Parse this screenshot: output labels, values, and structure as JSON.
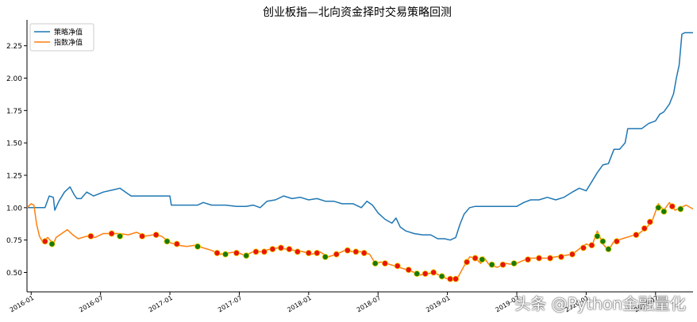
{
  "chart_data": {
    "type": "line",
    "title": "创业板指—北向资金择时交易策略回测",
    "xlabel": "",
    "ylabel": "",
    "ylim": [
      0.35,
      2.45
    ],
    "yticks": [
      "0.50",
      "0.75",
      "1.00",
      "1.25",
      "1.50",
      "1.75",
      "2.00",
      "2.25"
    ],
    "xticks": [
      {
        "t": 2016.0,
        "label": "2016-01"
      },
      {
        "t": 2016.5,
        "label": "2016-07"
      },
      {
        "t": 2017.0,
        "label": "2017-01"
      },
      {
        "t": 2017.5,
        "label": "2017-07"
      },
      {
        "t": 2018.0,
        "label": "2018-01"
      },
      {
        "t": 2018.5,
        "label": "2018-07"
      },
      {
        "t": 2019.0,
        "label": "2019-01"
      },
      {
        "t": 2019.5,
        "label": "2019-07"
      },
      {
        "t": 2020.0,
        "label": "2020-01"
      },
      {
        "t": 2020.5,
        "label": "2020-07"
      }
    ],
    "xlim": [
      2015.97,
      2020.77
    ],
    "legend_position": "top-left",
    "grid": false,
    "series": [
      {
        "name": "策略净值",
        "color": "#1f77b4",
        "points": [
          [
            2015.97,
            1.0
          ],
          [
            2016.05,
            1.0
          ],
          [
            2016.1,
            1.0
          ],
          [
            2016.13,
            1.09
          ],
          [
            2016.16,
            1.08
          ],
          [
            2016.17,
            0.98
          ],
          [
            2016.2,
            1.05
          ],
          [
            2016.24,
            1.12
          ],
          [
            2016.28,
            1.16
          ],
          [
            2016.31,
            1.1
          ],
          [
            2016.33,
            1.07
          ],
          [
            2016.36,
            1.07
          ],
          [
            2016.4,
            1.12
          ],
          [
            2016.45,
            1.09
          ],
          [
            2016.52,
            1.12
          ],
          [
            2016.6,
            1.14
          ],
          [
            2016.64,
            1.15
          ],
          [
            2016.68,
            1.12
          ],
          [
            2016.72,
            1.09
          ],
          [
            2016.8,
            1.09
          ],
          [
            2017.0,
            1.09
          ],
          [
            2017.01,
            1.02
          ],
          [
            2017.2,
            1.02
          ],
          [
            2017.24,
            1.04
          ],
          [
            2017.3,
            1.02
          ],
          [
            2017.4,
            1.02
          ],
          [
            2017.48,
            1.01
          ],
          [
            2017.55,
            1.01
          ],
          [
            2017.6,
            1.02
          ],
          [
            2017.65,
            1.0
          ],
          [
            2017.7,
            1.05
          ],
          [
            2017.76,
            1.06
          ],
          [
            2017.82,
            1.09
          ],
          [
            2017.88,
            1.07
          ],
          [
            2017.94,
            1.08
          ],
          [
            2018.0,
            1.06
          ],
          [
            2018.06,
            1.07
          ],
          [
            2018.12,
            1.05
          ],
          [
            2018.18,
            1.05
          ],
          [
            2018.24,
            1.03
          ],
          [
            2018.32,
            1.03
          ],
          [
            2018.38,
            1.0
          ],
          [
            2018.42,
            1.05
          ],
          [
            2018.46,
            1.02
          ],
          [
            2018.5,
            0.96
          ],
          [
            2018.55,
            0.91
          ],
          [
            2018.6,
            0.88
          ],
          [
            2018.63,
            0.92
          ],
          [
            2018.66,
            0.85
          ],
          [
            2018.7,
            0.82
          ],
          [
            2018.76,
            0.8
          ],
          [
            2018.82,
            0.79
          ],
          [
            2018.88,
            0.79
          ],
          [
            2018.93,
            0.76
          ],
          [
            2018.98,
            0.76
          ],
          [
            2019.02,
            0.75
          ],
          [
            2019.06,
            0.77
          ],
          [
            2019.09,
            0.87
          ],
          [
            2019.12,
            0.95
          ],
          [
            2019.16,
            1.0
          ],
          [
            2019.2,
            1.01
          ],
          [
            2019.35,
            1.01
          ],
          [
            2019.5,
            1.01
          ],
          [
            2019.55,
            1.04
          ],
          [
            2019.6,
            1.06
          ],
          [
            2019.66,
            1.06
          ],
          [
            2019.72,
            1.08
          ],
          [
            2019.78,
            1.06
          ],
          [
            2019.84,
            1.08
          ],
          [
            2019.9,
            1.12
          ],
          [
            2019.95,
            1.15
          ],
          [
            2020.0,
            1.13
          ],
          [
            2020.04,
            1.2
          ],
          [
            2020.08,
            1.27
          ],
          [
            2020.12,
            1.33
          ],
          [
            2020.16,
            1.34
          ],
          [
            2020.2,
            1.45
          ],
          [
            2020.24,
            1.45
          ],
          [
            2020.28,
            1.5
          ],
          [
            2020.3,
            1.61
          ],
          [
            2020.4,
            1.61
          ],
          [
            2020.45,
            1.65
          ],
          [
            2020.5,
            1.67
          ],
          [
            2020.53,
            1.72
          ],
          [
            2020.56,
            1.74
          ],
          [
            2020.6,
            1.8
          ],
          [
            2020.63,
            1.88
          ],
          [
            2020.65,
            2.0
          ],
          [
            2020.67,
            2.1
          ],
          [
            2020.69,
            2.34
          ],
          [
            2020.71,
            2.35
          ],
          [
            2020.77,
            2.35
          ]
        ]
      },
      {
        "name": "指数净值",
        "color": "#ff7f0e",
        "points": [
          [
            2015.97,
            1.0
          ],
          [
            2016.0,
            1.03
          ],
          [
            2016.02,
            1.02
          ],
          [
            2016.04,
            0.87
          ],
          [
            2016.06,
            0.78
          ],
          [
            2016.08,
            0.74
          ],
          [
            2016.12,
            0.77
          ],
          [
            2016.16,
            0.72
          ],
          [
            2016.18,
            0.77
          ],
          [
            2016.22,
            0.8
          ],
          [
            2016.26,
            0.83
          ],
          [
            2016.3,
            0.79
          ],
          [
            2016.34,
            0.76
          ],
          [
            2016.4,
            0.78
          ],
          [
            2016.46,
            0.77
          ],
          [
            2016.52,
            0.8
          ],
          [
            2016.58,
            0.8
          ],
          [
            2016.64,
            0.8
          ],
          [
            2016.7,
            0.79
          ],
          [
            2016.76,
            0.81
          ],
          [
            2016.82,
            0.78
          ],
          [
            2016.88,
            0.79
          ],
          [
            2016.94,
            0.78
          ],
          [
            2017.0,
            0.73
          ],
          [
            2017.06,
            0.71
          ],
          [
            2017.12,
            0.7
          ],
          [
            2017.18,
            0.71
          ],
          [
            2017.24,
            0.69
          ],
          [
            2017.3,
            0.67
          ],
          [
            2017.36,
            0.64
          ],
          [
            2017.42,
            0.65
          ],
          [
            2017.48,
            0.66
          ],
          [
            2017.54,
            0.63
          ],
          [
            2017.6,
            0.66
          ],
          [
            2017.66,
            0.66
          ],
          [
            2017.72,
            0.68
          ],
          [
            2017.78,
            0.69
          ],
          [
            2017.84,
            0.68
          ],
          [
            2017.9,
            0.67
          ],
          [
            2017.96,
            0.66
          ],
          [
            2018.02,
            0.64
          ],
          [
            2018.08,
            0.66
          ],
          [
            2018.14,
            0.62
          ],
          [
            2018.2,
            0.64
          ],
          [
            2018.26,
            0.67
          ],
          [
            2018.32,
            0.66
          ],
          [
            2018.38,
            0.66
          ],
          [
            2018.44,
            0.64
          ],
          [
            2018.48,
            0.57
          ],
          [
            2018.52,
            0.58
          ],
          [
            2018.56,
            0.57
          ],
          [
            2018.62,
            0.55
          ],
          [
            2018.68,
            0.53
          ],
          [
            2018.74,
            0.51
          ],
          [
            2018.8,
            0.48
          ],
          [
            2018.86,
            0.49
          ],
          [
            2018.9,
            0.5
          ],
          [
            2018.96,
            0.47
          ],
          [
            2019.0,
            0.45
          ],
          [
            2019.04,
            0.44
          ],
          [
            2019.08,
            0.47
          ],
          [
            2019.12,
            0.55
          ],
          [
            2019.16,
            0.62
          ],
          [
            2019.2,
            0.61
          ],
          [
            2019.24,
            0.57
          ],
          [
            2019.26,
            0.62
          ],
          [
            2019.3,
            0.56
          ],
          [
            2019.36,
            0.54
          ],
          [
            2019.42,
            0.57
          ],
          [
            2019.48,
            0.56
          ],
          [
            2019.54,
            0.59
          ],
          [
            2019.6,
            0.61
          ],
          [
            2019.66,
            0.61
          ],
          [
            2019.72,
            0.61
          ],
          [
            2019.78,
            0.62
          ],
          [
            2019.84,
            0.63
          ],
          [
            2019.9,
            0.64
          ],
          [
            2019.96,
            0.69
          ],
          [
            2020.0,
            0.72
          ],
          [
            2020.04,
            0.7
          ],
          [
            2020.08,
            0.82
          ],
          [
            2020.12,
            0.72
          ],
          [
            2020.16,
            0.67
          ],
          [
            2020.2,
            0.74
          ],
          [
            2020.26,
            0.76
          ],
          [
            2020.32,
            0.78
          ],
          [
            2020.38,
            0.8
          ],
          [
            2020.44,
            0.85
          ],
          [
            2020.48,
            0.91
          ],
          [
            2020.52,
            1.03
          ],
          [
            2020.56,
            0.98
          ],
          [
            2020.6,
            1.04
          ],
          [
            2020.64,
            0.98
          ],
          [
            2020.68,
            1.0
          ],
          [
            2020.72,
            1.02
          ],
          [
            2020.77,
            0.99
          ]
        ]
      }
    ],
    "markers": {
      "buy_color": "#e8150e",
      "sell_color": "#1a7a0a",
      "points": [
        [
          2016.1,
          0.74,
          "b"
        ],
        [
          2016.15,
          0.72,
          "s"
        ],
        [
          2016.43,
          0.78,
          "b"
        ],
        [
          2016.58,
          0.8,
          "b"
        ],
        [
          2016.64,
          0.78,
          "s"
        ],
        [
          2016.8,
          0.78,
          "b"
        ],
        [
          2016.9,
          0.79,
          "b"
        ],
        [
          2016.98,
          0.74,
          "s"
        ],
        [
          2017.05,
          0.72,
          "b"
        ],
        [
          2017.2,
          0.7,
          "s"
        ],
        [
          2017.34,
          0.65,
          "b"
        ],
        [
          2017.4,
          0.64,
          "s"
        ],
        [
          2017.48,
          0.65,
          "b"
        ],
        [
          2017.55,
          0.63,
          "s"
        ],
        [
          2017.62,
          0.66,
          "b"
        ],
        [
          2017.68,
          0.66,
          "b"
        ],
        [
          2017.74,
          0.68,
          "b"
        ],
        [
          2017.8,
          0.69,
          "b"
        ],
        [
          2017.86,
          0.68,
          "b"
        ],
        [
          2017.92,
          0.66,
          "b"
        ],
        [
          2018.0,
          0.65,
          "b"
        ],
        [
          2018.06,
          0.65,
          "b"
        ],
        [
          2018.12,
          0.62,
          "s"
        ],
        [
          2018.2,
          0.64,
          "b"
        ],
        [
          2018.28,
          0.67,
          "b"
        ],
        [
          2018.34,
          0.66,
          "b"
        ],
        [
          2018.4,
          0.65,
          "b"
        ],
        [
          2018.48,
          0.57,
          "s"
        ],
        [
          2018.55,
          0.57,
          "b"
        ],
        [
          2018.64,
          0.55,
          "b"
        ],
        [
          2018.72,
          0.52,
          "b"
        ],
        [
          2018.78,
          0.49,
          "s"
        ],
        [
          2018.84,
          0.49,
          "b"
        ],
        [
          2018.9,
          0.5,
          "b"
        ],
        [
          2018.96,
          0.47,
          "s"
        ],
        [
          2019.02,
          0.45,
          "b"
        ],
        [
          2019.06,
          0.45,
          "b"
        ],
        [
          2019.14,
          0.58,
          "b"
        ],
        [
          2019.2,
          0.61,
          "b"
        ],
        [
          2019.25,
          0.6,
          "s"
        ],
        [
          2019.32,
          0.56,
          "s"
        ],
        [
          2019.4,
          0.56,
          "b"
        ],
        [
          2019.48,
          0.57,
          "s"
        ],
        [
          2019.58,
          0.6,
          "b"
        ],
        [
          2019.66,
          0.61,
          "b"
        ],
        [
          2019.74,
          0.61,
          "b"
        ],
        [
          2019.82,
          0.62,
          "b"
        ],
        [
          2019.9,
          0.64,
          "b"
        ],
        [
          2019.98,
          0.69,
          "b"
        ],
        [
          2020.04,
          0.71,
          "b"
        ],
        [
          2020.08,
          0.78,
          "s"
        ],
        [
          2020.12,
          0.74,
          "s"
        ],
        [
          2020.16,
          0.68,
          "s"
        ],
        [
          2020.22,
          0.74,
          "b"
        ],
        [
          2020.36,
          0.79,
          "b"
        ],
        [
          2020.42,
          0.84,
          "b"
        ],
        [
          2020.46,
          0.89,
          "b"
        ],
        [
          2020.52,
          1.0,
          "s"
        ],
        [
          2020.56,
          0.97,
          "s"
        ],
        [
          2020.62,
          1.01,
          "b"
        ],
        [
          2020.68,
          0.99,
          "s"
        ]
      ]
    }
  },
  "watermark": "头条 @Python金融量化"
}
